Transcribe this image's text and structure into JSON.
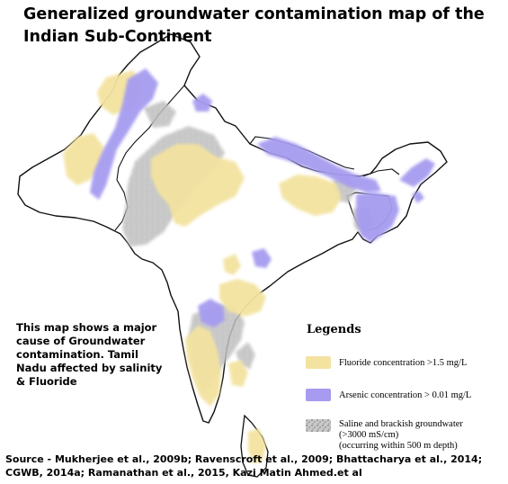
{
  "title": "Generalized groundwater contamination map of the Indian Sub-Continent",
  "note": "This map shows a major cause of Groundwater contamination. Tamil Nadu affected by salinity & Fluoride",
  "legend": {
    "heading": "Legends",
    "items": [
      {
        "label": "Fluoride concentration >1.5 mg/L",
        "color": "#f3e3a0"
      },
      {
        "label": "Arsenic concentration > 0.01 mg/L",
        "color": "#a69bf0"
      },
      {
        "label_lines": [
          "Saline and brackish groundwater",
          "(>3000 mS/cm)",
          "(occurring within 500 m depth)"
        ],
        "color": "#b8b8b8"
      }
    ]
  },
  "source": "Source - Mukherjee et al., 2009b; Ravenscroft et al., 2009; Bhattacharya et al., 2014; CGWB, 2014a; Ramanathan et al., 2015, Kazi Matin Ahmed.et al",
  "colors": {
    "fluoride": "#f3e3a0",
    "arsenic": "#a69bf0",
    "saline": "#b8b8b8",
    "outline": "#111111"
  }
}
